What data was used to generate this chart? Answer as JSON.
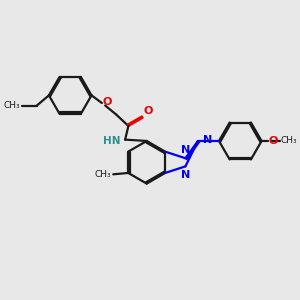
{
  "bg_color": "#e8e8e8",
  "bond_color": "#1a1a1a",
  "n_color": "#0000ee",
  "o_color": "#ee0000",
  "nh_color": "#2a9090",
  "text_color": "#1a1a1a",
  "line_width": 1.6,
  "dbo": 0.055,
  "xlim": [
    0,
    10
  ],
  "ylim": [
    0,
    10
  ],
  "r_hex": 0.78
}
